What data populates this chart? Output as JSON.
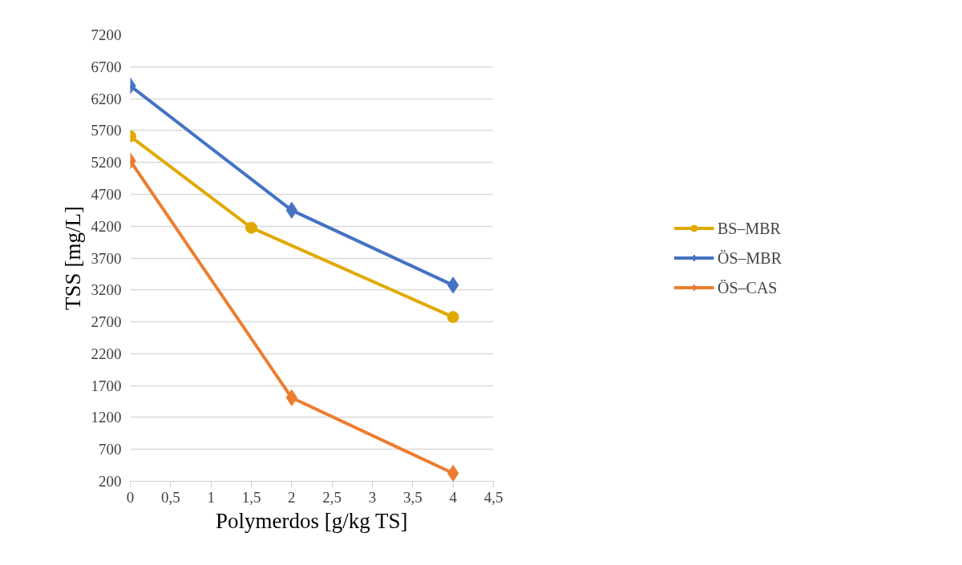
{
  "chart_data": {
    "type": "line",
    "xlabel": "Polymerdos [g/kg TS]",
    "ylabel": "TSS [mg/L]",
    "xlim": [
      0,
      4.5
    ],
    "ylim": [
      200,
      7200
    ],
    "xticks": [
      0,
      {
        "value": 0.5,
        "label": "0,5"
      },
      1,
      {
        "value": 1.5,
        "label": "1,5"
      },
      2,
      {
        "value": 2.5,
        "label": "2,5"
      },
      3,
      {
        "value": 3.5,
        "label": "3,5"
      },
      4,
      {
        "value": 4.5,
        "label": "4,5"
      }
    ],
    "yticks": [
      200,
      700,
      1200,
      1700,
      2200,
      2700,
      3200,
      3700,
      4200,
      4700,
      5200,
      5700,
      6200,
      6700,
      7200
    ],
    "grid": "y",
    "legend": "right",
    "series": [
      {
        "name": "BS–MBR",
        "color": "#e0a900",
        "marker": "circle",
        "x": [
          0,
          1.5,
          4
        ],
        "values": [
          5610,
          4175,
          2775
        ]
      },
      {
        "name": "ÖS–MBR",
        "color": "#4472c4",
        "marker": "diamond",
        "x": [
          0,
          2,
          4
        ],
        "values": [
          6400,
          4450,
          3275
        ]
      },
      {
        "name": "ÖS–CAS",
        "color": "#ed7d31",
        "marker": "diamond",
        "x": [
          0,
          2,
          4
        ],
        "values": [
          5225,
          1510,
          325
        ]
      }
    ]
  }
}
